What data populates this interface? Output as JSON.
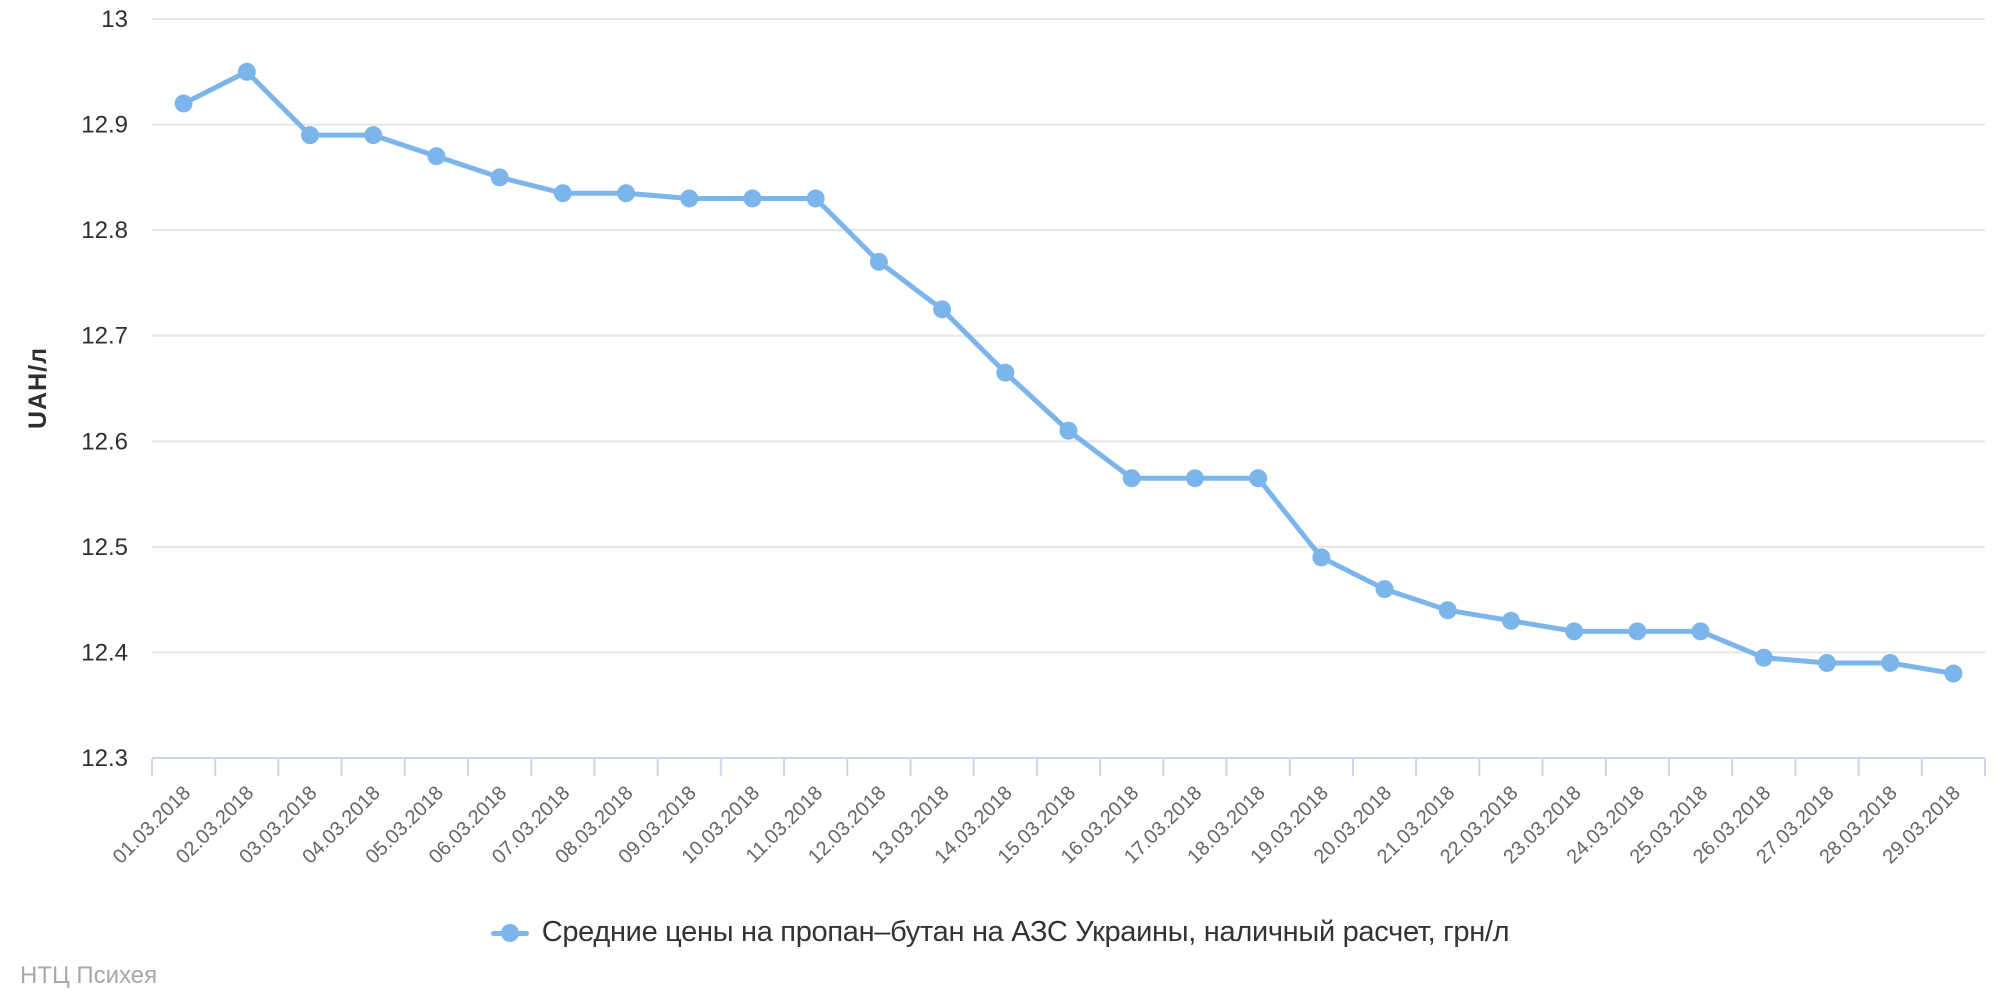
{
  "chart_data": {
    "type": "line",
    "title": "",
    "x": [
      "01.03.2018",
      "02.03.2018",
      "03.03.2018",
      "04.03.2018",
      "05.03.2018",
      "06.03.2018",
      "07.03.2018",
      "08.03.2018",
      "09.03.2018",
      "10.03.2018",
      "11.03.2018",
      "12.03.2018",
      "13.03.2018",
      "14.03.2018",
      "15.03.2018",
      "16.03.2018",
      "17.03.2018",
      "18.03.2018",
      "19.03.2018",
      "20.03.2018",
      "21.03.2018",
      "22.03.2018",
      "23.03.2018",
      "24.03.2018",
      "25.03.2018",
      "26.03.2018",
      "27.03.2018",
      "28.03.2018",
      "29.03.2018"
    ],
    "series": [
      {
        "name": "Средние цены на пропан–бутан на АЗС Украины, наличный расчет, грн/л",
        "color": "#7cb5ec",
        "values": [
          12.92,
          12.95,
          12.89,
          12.89,
          12.87,
          12.85,
          12.835,
          12.835,
          12.83,
          12.83,
          12.83,
          12.77,
          12.725,
          12.665,
          12.61,
          12.565,
          12.565,
          12.565,
          12.49,
          12.46,
          12.44,
          12.43,
          12.42,
          12.42,
          12.42,
          12.395,
          12.39,
          12.39,
          12.38
        ]
      }
    ],
    "xlabel": "",
    "ylabel": "UAH/л",
    "ylim": [
      12.3,
      13
    ],
    "yticks": [
      "12.3",
      "12.4",
      "12.5",
      "12.6",
      "12.7",
      "12.8",
      "12.9",
      "13"
    ],
    "grid": "horizontal",
    "legend_position": "bottom-center"
  },
  "footer": {
    "watermark": "НТЦ Психея"
  },
  "colors": {
    "series": "#7cb5ec",
    "grid": "#e6e6e6",
    "axis": "#ccd6eb",
    "y_label": "#2f2f2f",
    "x_label": "#666666",
    "legend_text": "#333333",
    "watermark": "#a8a8a8",
    "background": "#ffffff"
  }
}
